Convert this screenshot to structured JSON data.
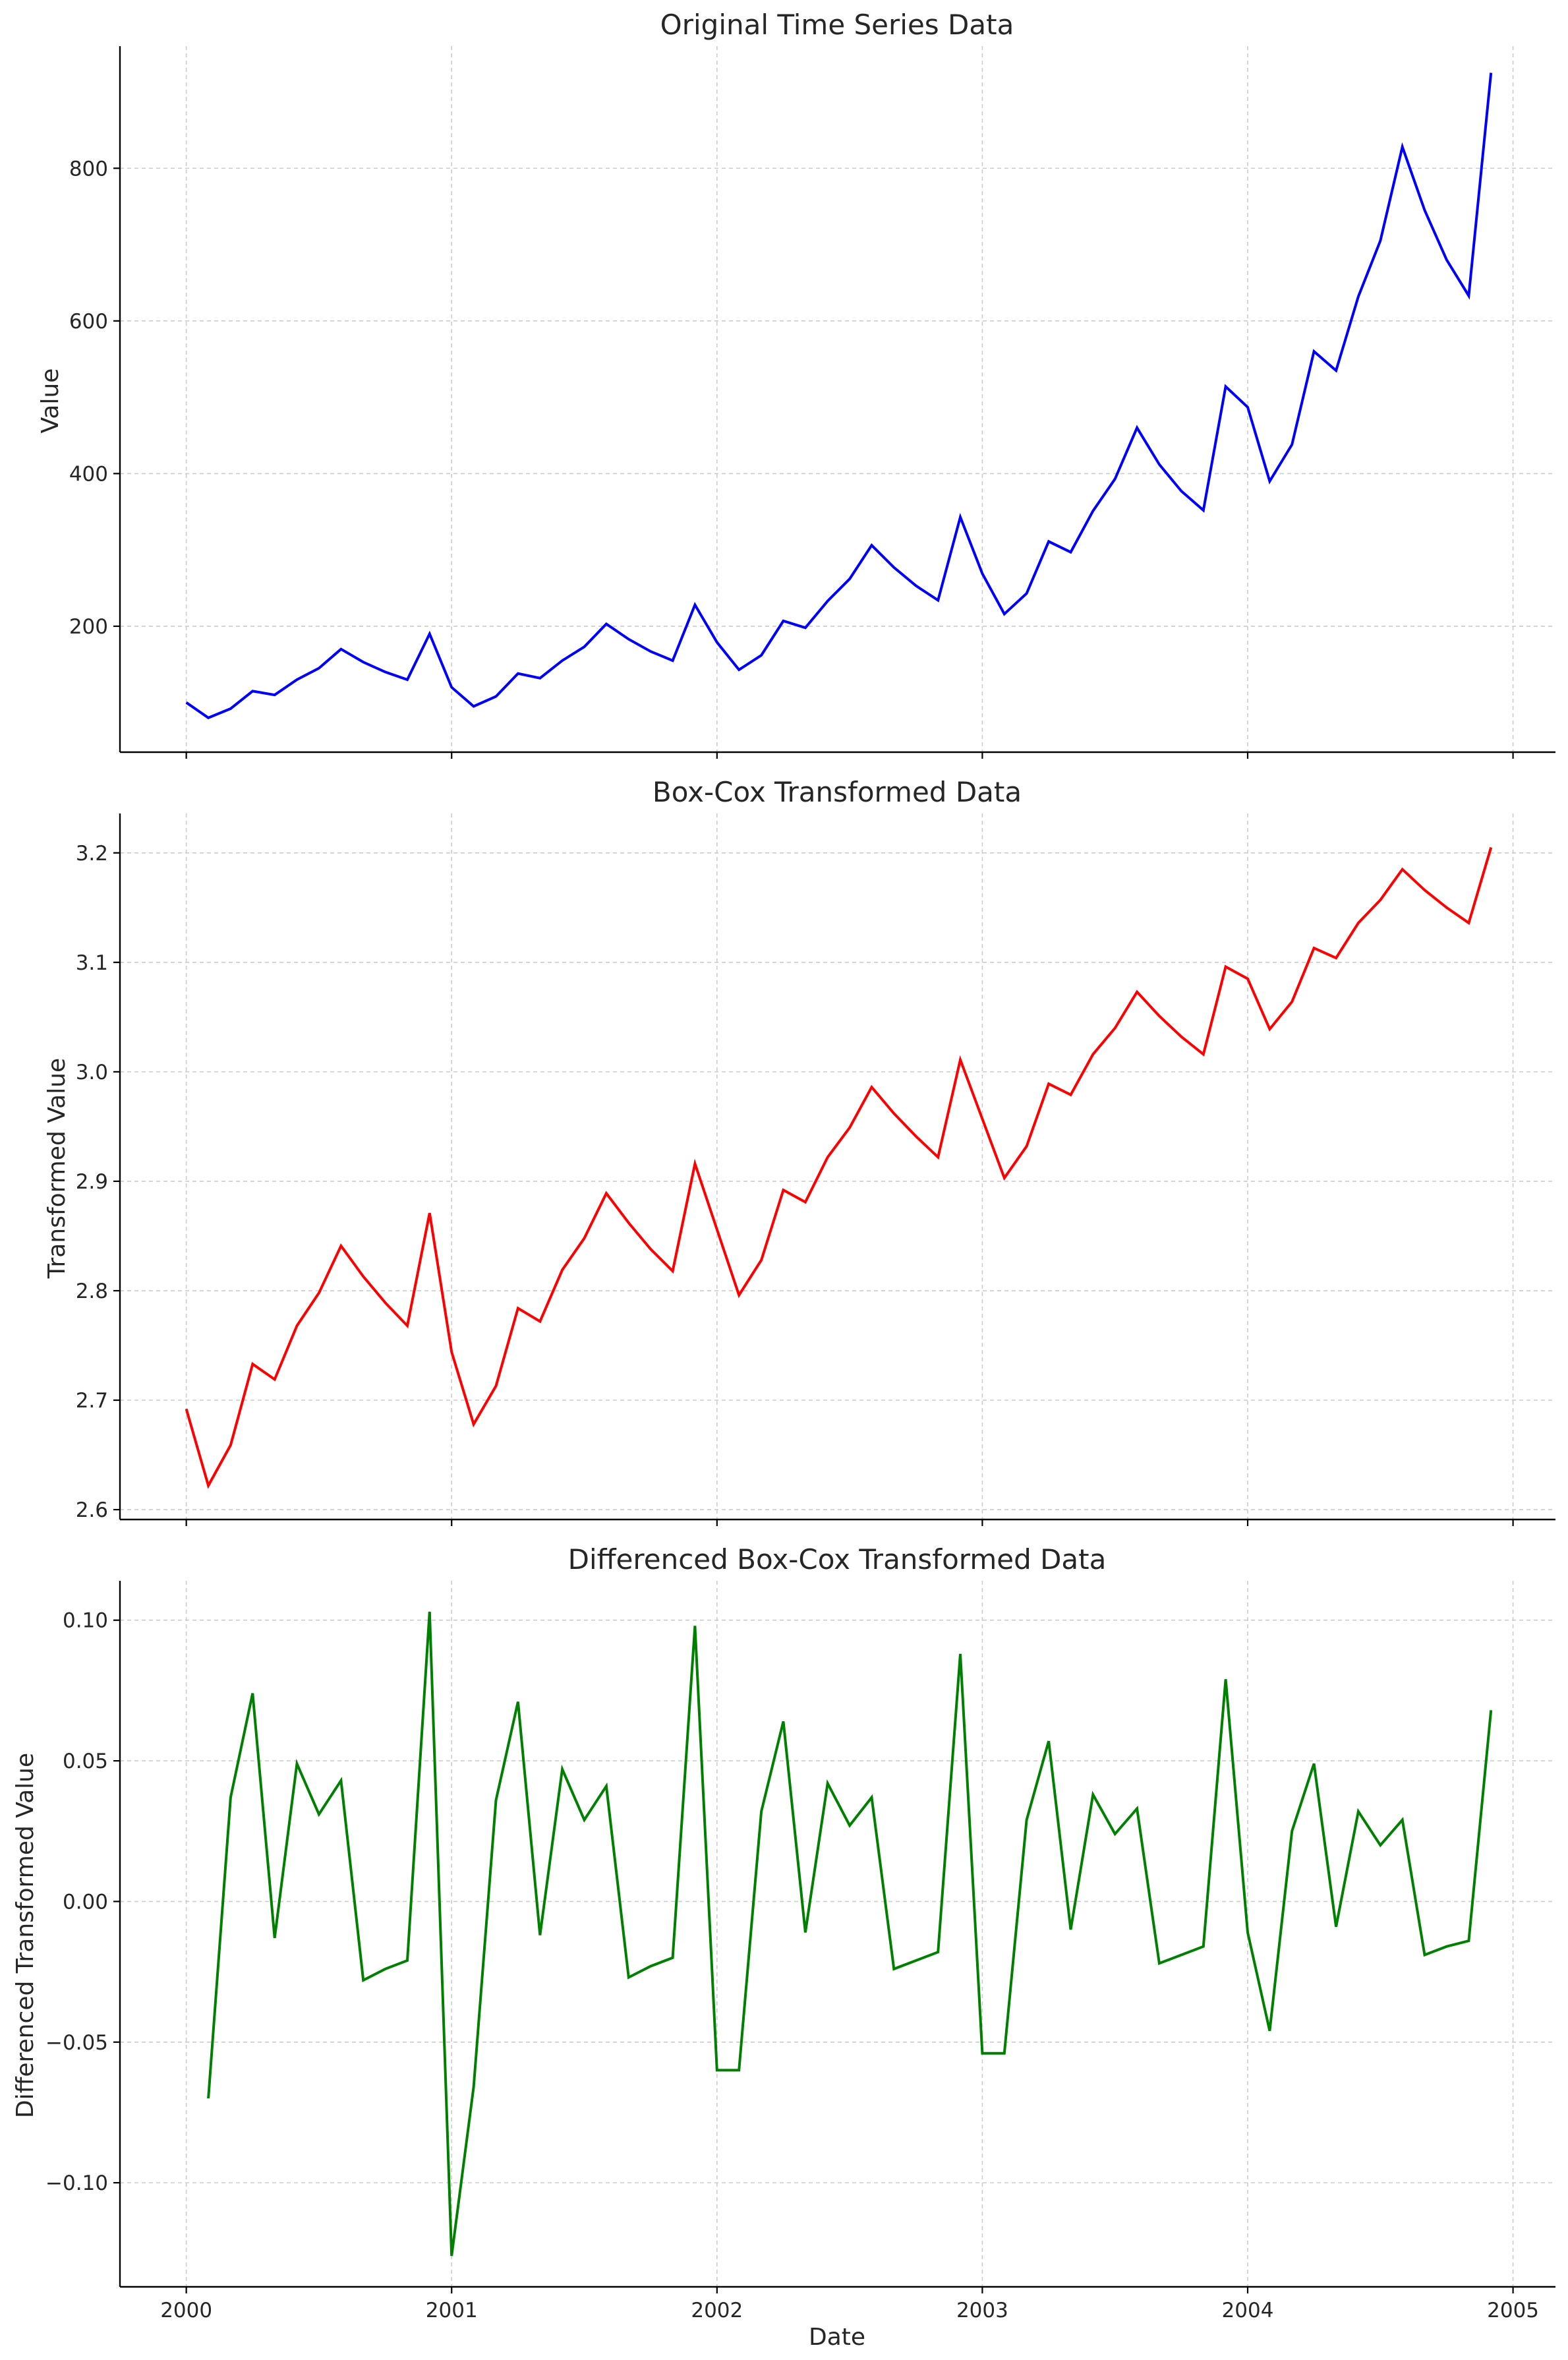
{
  "chart_data": [
    {
      "type": "line",
      "title": "Original Time Series Data",
      "xlabel": "",
      "ylabel": "Value",
      "x_ticks": [
        "2000",
        "2001",
        "2002",
        "2003",
        "2004",
        "2005"
      ],
      "y_ticks": [
        "200",
        "400",
        "600",
        "800"
      ],
      "ylim": [
        35,
        960
      ],
      "xlim": [
        1999.75,
        2005.16
      ],
      "grid": true,
      "color": "#0000ff",
      "series": [
        {
          "x": [
            2000.0,
            2000.083,
            2000.167,
            2000.25,
            2000.333,
            2000.417,
            2000.5,
            2000.583,
            2000.667,
            2000.75,
            2000.833,
            2000.917,
            2001.0,
            2001.083,
            2001.167,
            2001.25,
            2001.333,
            2001.417,
            2001.5,
            2001.583,
            2001.667,
            2001.75,
            2001.833,
            2001.917,
            2002.0,
            2002.083,
            2002.167,
            2002.25,
            2002.333,
            2002.417,
            2002.5,
            2002.583,
            2002.667,
            2002.75,
            2002.833,
            2002.917,
            2003.0,
            2003.083,
            2003.167,
            2003.25,
            2003.333,
            2003.417,
            2003.5,
            2003.583,
            2003.667,
            2003.75,
            2003.833,
            2003.917,
            2004.0,
            2004.083,
            2004.167,
            2004.25,
            2004.333,
            2004.417,
            2004.5,
            2004.583,
            2004.667,
            2004.75,
            2004.833,
            2004.917
          ],
          "y": [
            100,
            80,
            92,
            115,
            110,
            130,
            145,
            170,
            153,
            140,
            130,
            190,
            120,
            95,
            108,
            138,
            132,
            155,
            173,
            203,
            183,
            167,
            155,
            228,
            179,
            143,
            162,
            207,
            198,
            233,
            262,
            306,
            277,
            253,
            234,
            343,
            269,
            216,
            243,
            311,
            297,
            351,
            393,
            460,
            412,
            377,
            352,
            514,
            487,
            390,
            438,
            560,
            535,
            632,
            705,
            828,
            745,
            680,
            633,
            925
          ]
        }
      ]
    },
    {
      "type": "line",
      "title": "Box-Cox Transformed Data",
      "xlabel": "",
      "ylabel": "Transformed Value",
      "x_ticks": [
        "2000",
        "2001",
        "2002",
        "2003",
        "2004",
        "2005"
      ],
      "y_ticks": [
        "2.6",
        "2.7",
        "2.8",
        "2.9",
        "3.0",
        "3.1",
        "3.2"
      ],
      "ylim": [
        2.591,
        3.236
      ],
      "xlim": [
        1999.75,
        2005.16
      ],
      "grid": true,
      "color": "#ff0000",
      "series": [
        {
          "x": [
            2000.0,
            2000.083,
            2000.167,
            2000.25,
            2000.333,
            2000.417,
            2000.5,
            2000.583,
            2000.667,
            2000.75,
            2000.833,
            2000.917,
            2001.0,
            2001.083,
            2001.167,
            2001.25,
            2001.333,
            2001.417,
            2001.5,
            2001.583,
            2001.667,
            2001.75,
            2001.833,
            2001.917,
            2002.0,
            2002.083,
            2002.167,
            2002.25,
            2002.333,
            2002.417,
            2002.5,
            2002.583,
            2002.667,
            2002.75,
            2002.833,
            2002.917,
            2003.0,
            2003.083,
            2003.167,
            2003.25,
            2003.333,
            2003.417,
            2003.5,
            2003.583,
            2003.667,
            2003.75,
            2003.833,
            2003.917,
            2004.0,
            2004.083,
            2004.167,
            2004.25,
            2004.333,
            2004.417,
            2004.5,
            2004.583,
            2004.667,
            2004.75,
            2004.833,
            2004.917
          ],
          "y": [
            2.692,
            2.622,
            2.659,
            2.733,
            2.719,
            2.768,
            2.798,
            2.841,
            2.813,
            2.789,
            2.768,
            2.871,
            2.744,
            2.678,
            2.713,
            2.784,
            2.772,
            2.819,
            2.848,
            2.889,
            2.862,
            2.838,
            2.818,
            2.916,
            2.856,
            2.796,
            2.828,
            2.892,
            2.881,
            2.922,
            2.949,
            2.986,
            2.962,
            2.941,
            2.922,
            3.011,
            2.957,
            2.903,
            2.932,
            2.989,
            2.979,
            3.016,
            3.04,
            3.073,
            3.051,
            3.032,
            3.016,
            3.096,
            3.085,
            3.039,
            3.064,
            3.113,
            3.104,
            3.136,
            3.157,
            3.185,
            3.166,
            3.15,
            3.136,
            3.205
          ]
        }
      ]
    },
    {
      "type": "line",
      "title": "Differenced Box-Cox Transformed Data",
      "xlabel": "Date",
      "ylabel": "Differenced Transformed Value",
      "x_ticks": [
        "2000",
        "2001",
        "2002",
        "2003",
        "2004",
        "2005"
      ],
      "y_ticks": [
        "−0.10",
        "−0.05",
        "0.00",
        "0.05",
        "0.10"
      ],
      "ylim": [
        -0.137,
        0.114
      ],
      "xlim": [
        1999.75,
        2005.16
      ],
      "grid": true,
      "color": "#008000",
      "series": [
        {
          "x": [
            2000.083,
            2000.167,
            2000.25,
            2000.333,
            2000.417,
            2000.5,
            2000.583,
            2000.667,
            2000.75,
            2000.833,
            2000.917,
            2001.0,
            2001.083,
            2001.167,
            2001.25,
            2001.333,
            2001.417,
            2001.5,
            2001.583,
            2001.667,
            2001.75,
            2001.833,
            2001.917,
            2002.0,
            2002.083,
            2002.167,
            2002.25,
            2002.333,
            2002.417,
            2002.5,
            2002.583,
            2002.667,
            2002.75,
            2002.833,
            2002.917,
            2003.0,
            2003.083,
            2003.167,
            2003.25,
            2003.333,
            2003.417,
            2003.5,
            2003.583,
            2003.667,
            2003.75,
            2003.833,
            2003.917,
            2004.0,
            2004.083,
            2004.167,
            2004.25,
            2004.333,
            2004.417,
            2004.5,
            2004.583,
            2004.667,
            2004.75,
            2004.833,
            2004.917
          ],
          "y": [
            -0.07,
            0.037,
            0.074,
            -0.013,
            0.049,
            0.031,
            0.043,
            -0.028,
            -0.024,
            -0.021,
            0.103,
            -0.126,
            -0.066,
            0.036,
            0.071,
            -0.012,
            0.047,
            0.029,
            0.041,
            -0.027,
            -0.023,
            -0.02,
            0.098,
            -0.06,
            -0.06,
            0.032,
            0.064,
            -0.011,
            0.042,
            0.027,
            0.037,
            -0.024,
            -0.021,
            -0.018,
            0.088,
            -0.054,
            -0.054,
            0.029,
            0.057,
            -0.01,
            0.038,
            0.024,
            0.033,
            -0.022,
            -0.019,
            -0.016,
            0.079,
            -0.011,
            -0.046,
            0.025,
            0.049,
            -0.009,
            0.032,
            0.02,
            0.029,
            -0.019,
            -0.016,
            -0.014,
            0.068
          ]
        }
      ]
    }
  ]
}
